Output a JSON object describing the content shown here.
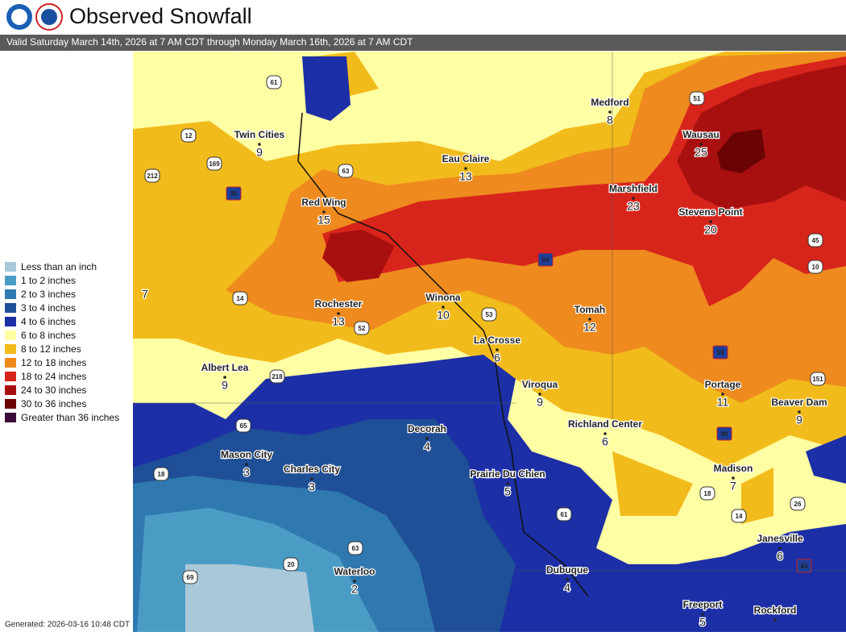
{
  "header": {
    "title": "Observed Snowfall",
    "subtitle": "Valid Saturday March 14th, 2026 at 7 AM CDT through Monday March 16th, 2026 at 7 AM CDT"
  },
  "legend": {
    "items": [
      {
        "label": "Less than an inch",
        "color": "#a9c8d9"
      },
      {
        "label": "1 to 2 inches",
        "color": "#4b9cc4"
      },
      {
        "label": "2 to 3 inches",
        "color": "#2f78b0"
      },
      {
        "label": "3 to 4 inches",
        "color": "#1f4f96"
      },
      {
        "label": "4 to 6 inches",
        "color": "#1c2fa6"
      },
      {
        "label": "6 to 8 inches",
        "color": "#ffffa3"
      },
      {
        "label": "8 to 12 inches",
        "color": "#f2bb1c"
      },
      {
        "label": "12 to 18 inches",
        "color": "#ee8a1e"
      },
      {
        "label": "18 to 24 inches",
        "color": "#d8251c"
      },
      {
        "label": "24 to 30 inches",
        "color": "#a8100f"
      },
      {
        "label": "30 to 36 inches",
        "color": "#6a0404"
      },
      {
        "label": "Greater than 36 inches",
        "color": "#3b0b3a"
      }
    ]
  },
  "cities": [
    {
      "name": "Twin Cities",
      "value": "9"
    },
    {
      "name": "Eau Claire",
      "value": "13"
    },
    {
      "name": "Medford",
      "value": "8"
    },
    {
      "name": "Wausau",
      "value": "25"
    },
    {
      "name": "Marshfield",
      "value": "23"
    },
    {
      "name": "Stevens Point",
      "value": "20"
    },
    {
      "name": "Red Wing",
      "value": "15"
    },
    {
      "name": "Winona",
      "value": "10"
    },
    {
      "name": "Rochester",
      "value": "13"
    },
    {
      "name": "Tomah",
      "value": "12"
    },
    {
      "name": "La Crosse",
      "value": "6"
    },
    {
      "name": "Albert Lea",
      "value": "9"
    },
    {
      "name": "Viroqua",
      "value": "9"
    },
    {
      "name": "Portage",
      "value": "11"
    },
    {
      "name": "Beaver Dam",
      "value": "9"
    },
    {
      "name": "Richland Center",
      "value": "6"
    },
    {
      "name": "Decorah",
      "value": "4"
    },
    {
      "name": "Mason City",
      "value": "3"
    },
    {
      "name": "Charles City",
      "value": "3"
    },
    {
      "name": "Madison",
      "value": "7"
    },
    {
      "name": "Prairie Du Chien",
      "value": "5"
    },
    {
      "name": "Janesville",
      "value": "6"
    },
    {
      "name": "Waterloo",
      "value": "2"
    },
    {
      "name": "Dubuque",
      "value": "4"
    },
    {
      "name": "Freeport",
      "value": "5"
    },
    {
      "name": "Rockford",
      "value": null
    }
  ],
  "edge_values": [
    "7"
  ],
  "highways": [
    "61",
    "12",
    "169",
    "212",
    "35",
    "63",
    "51",
    "94",
    "14",
    "52",
    "53",
    "218",
    "65",
    "18",
    "63",
    "20",
    "69",
    "61",
    "39",
    "151",
    "90",
    "18",
    "14",
    "26",
    "43",
    "45",
    "10"
  ],
  "footer": {
    "generated": "Generated: 2026-03-16 10:48 CDT"
  }
}
